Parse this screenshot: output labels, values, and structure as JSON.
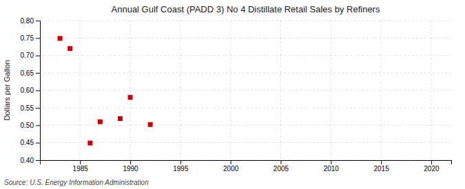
{
  "chart_data": {
    "type": "scatter",
    "title": "Annual Gulf Coast (PADD 3) No 4 Distillate Retail Sales by Refiners",
    "ylabel": "Dollars per Gallon",
    "source": "Source: U.S. Energy Information Administration",
    "x": [
      1983,
      1984,
      1986,
      1987,
      1989,
      1990,
      1992
    ],
    "values": [
      0.749,
      0.72,
      0.449,
      0.51,
      0.519,
      0.58,
      0.502
    ],
    "color": "#cc0000",
    "marker": "square",
    "xlim": [
      1981,
      2022
    ],
    "ylim": [
      0.4,
      0.8
    ],
    "xticks": [
      1985,
      1990,
      1995,
      2000,
      2005,
      2010,
      2015,
      2020
    ],
    "yticks": [
      {
        "value": 0.4,
        "label": "0.40"
      },
      0.45,
      {
        "value": 0.5,
        "label": "0.50"
      },
      0.55,
      {
        "value": 0.6,
        "label": "0.60"
      },
      0.65,
      {
        "value": 0.7,
        "label": "0.70"
      },
      0.75,
      {
        "value": 0.8,
        "label": "0.80"
      }
    ],
    "grid": true
  }
}
